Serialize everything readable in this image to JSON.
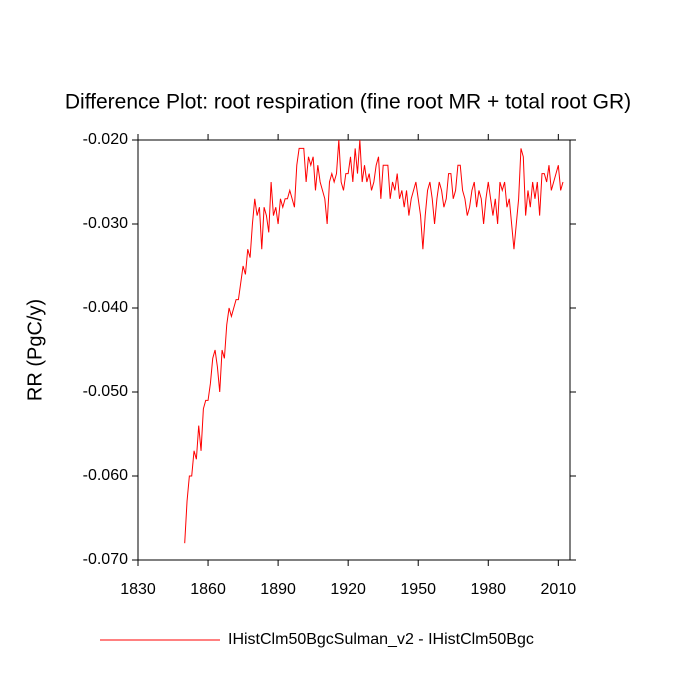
{
  "chart_data": {
    "type": "line",
    "title": "Difference Plot: root respiration (fine root MR + total root GR)",
    "y_label": "RR  (PgC/y)",
    "x": [
      1850,
      1851,
      1852,
      1853,
      1854,
      1855,
      1856,
      1857,
      1858,
      1859,
      1860,
      1861,
      1862,
      1863,
      1864,
      1865,
      1866,
      1867,
      1868,
      1869,
      1870,
      1871,
      1872,
      1873,
      1874,
      1875,
      1876,
      1877,
      1878,
      1879,
      1880,
      1881,
      1882,
      1883,
      1884,
      1885,
      1886,
      1887,
      1888,
      1889,
      1890,
      1891,
      1892,
      1893,
      1894,
      1895,
      1896,
      1897,
      1898,
      1899,
      1900,
      1901,
      1902,
      1903,
      1904,
      1905,
      1906,
      1907,
      1908,
      1909,
      1910,
      1911,
      1912,
      1913,
      1914,
      1915,
      1916,
      1917,
      1918,
      1919,
      1920,
      1921,
      1922,
      1923,
      1924,
      1925,
      1926,
      1927,
      1928,
      1929,
      1930,
      1931,
      1932,
      1933,
      1934,
      1935,
      1936,
      1937,
      1938,
      1939,
      1940,
      1941,
      1942,
      1943,
      1944,
      1945,
      1946,
      1947,
      1948,
      1949,
      1950,
      1951,
      1952,
      1953,
      1954,
      1955,
      1956,
      1957,
      1958,
      1959,
      1960,
      1961,
      1962,
      1963,
      1964,
      1965,
      1966,
      1967,
      1968,
      1969,
      1970,
      1971,
      1972,
      1973,
      1974,
      1975,
      1976,
      1977,
      1978,
      1979,
      1980,
      1981,
      1982,
      1983,
      1984,
      1985,
      1986,
      1987,
      1988,
      1989,
      1990,
      1991,
      1992,
      1993,
      1994,
      1995,
      1996,
      1997,
      1998,
      1999,
      2000,
      2001,
      2002,
      2003,
      2004,
      2005,
      2006,
      2007,
      2008,
      2009,
      2010,
      2011,
      2012
    ],
    "series": [
      {
        "name": "IHistClm50BgcSulman_v2 - IHistClm50Bgc",
        "color": "#ff0000",
        "values": [
          -0.068,
          -0.063,
          -0.06,
          -0.06,
          -0.057,
          -0.058,
          -0.054,
          -0.057,
          -0.052,
          -0.051,
          -0.051,
          -0.049,
          -0.046,
          -0.045,
          -0.047,
          -0.05,
          -0.045,
          -0.046,
          -0.042,
          -0.04,
          -0.041,
          -0.04,
          -0.039,
          -0.039,
          -0.037,
          -0.035,
          -0.036,
          -0.033,
          -0.034,
          -0.03,
          -0.027,
          -0.029,
          -0.028,
          -0.033,
          -0.028,
          -0.029,
          -0.031,
          -0.025,
          -0.029,
          -0.028,
          -0.03,
          -0.027,
          -0.028,
          -0.027,
          -0.027,
          -0.026,
          -0.027,
          -0.028,
          -0.023,
          -0.021,
          -0.021,
          -0.021,
          -0.025,
          -0.022,
          -0.023,
          -0.022,
          -0.026,
          -0.023,
          -0.025,
          -0.026,
          -0.027,
          -0.03,
          -0.025,
          -0.024,
          -0.025,
          -0.024,
          -0.02,
          -0.025,
          -0.026,
          -0.024,
          -0.024,
          -0.022,
          -0.025,
          -0.021,
          -0.024,
          -0.02,
          -0.025,
          -0.023,
          -0.025,
          -0.024,
          -0.026,
          -0.025,
          -0.023,
          -0.022,
          -0.027,
          -0.023,
          -0.023,
          -0.023,
          -0.027,
          -0.025,
          -0.026,
          -0.024,
          -0.027,
          -0.026,
          -0.028,
          -0.026,
          -0.029,
          -0.027,
          -0.026,
          -0.025,
          -0.027,
          -0.029,
          -0.033,
          -0.029,
          -0.026,
          -0.025,
          -0.027,
          -0.03,
          -0.027,
          -0.025,
          -0.026,
          -0.028,
          -0.027,
          -0.024,
          -0.024,
          -0.027,
          -0.026,
          -0.023,
          -0.023,
          -0.026,
          -0.027,
          -0.029,
          -0.028,
          -0.026,
          -0.025,
          -0.028,
          -0.026,
          -0.027,
          -0.03,
          -0.027,
          -0.025,
          -0.027,
          -0.029,
          -0.027,
          -0.03,
          -0.025,
          -0.026,
          -0.025,
          -0.028,
          -0.027,
          -0.03,
          -0.033,
          -0.03,
          -0.027,
          -0.021,
          -0.022,
          -0.029,
          -0.026,
          -0.028,
          -0.025,
          -0.027,
          -0.025,
          -0.029,
          -0.024,
          -0.024,
          -0.025,
          -0.023,
          -0.026,
          -0.025,
          -0.024,
          -0.023,
          -0.026,
          -0.025
        ]
      }
    ],
    "xlim": [
      1830,
      2015
    ],
    "xticks": [
      1830,
      1860,
      1890,
      1920,
      1950,
      1980,
      2010
    ],
    "ylim": [
      -0.07,
      -0.02
    ],
    "yticks": [
      {
        "value": -0.07,
        "label": "-0.070"
      },
      {
        "value": -0.06,
        "label": "-0.060"
      },
      {
        "value": -0.05,
        "label": "-0.050"
      },
      {
        "value": -0.04,
        "label": "-0.040"
      },
      {
        "value": -0.03,
        "label": "-0.030"
      },
      {
        "value": -0.02,
        "label": "-0.020"
      }
    ],
    "grid": false
  }
}
